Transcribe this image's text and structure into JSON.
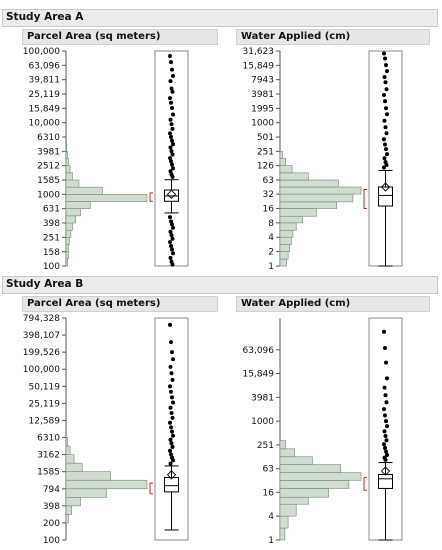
{
  "sections": [
    {
      "title": "Study Area A"
    },
    {
      "title": "Study Area B"
    }
  ],
  "colors": {
    "bar_fill": "#cfdccf",
    "bar_stroke": "#6f8a6f",
    "bracket": "#cc2222",
    "point": "#000000",
    "frame": "#888888"
  },
  "chart_data": [
    {
      "type": "histogram_boxplot",
      "panel": "A-parcel",
      "title": "Parcel Area (sq meters)",
      "scale": "log",
      "ylim": [
        100,
        100000
      ],
      "tick_labels": [
        "100,000",
        "63,096",
        "39,811",
        "25,119",
        "15,849",
        "10,000",
        "6310",
        "3981",
        "2512",
        "1585",
        "1000",
        "631",
        "398",
        "251",
        "158",
        "100"
      ],
      "histogram": [
        {
          "bin": [
            100,
            126
          ],
          "count": 0.02
        },
        {
          "bin": [
            126,
            158
          ],
          "count": 0.03
        },
        {
          "bin": [
            158,
            200
          ],
          "count": 0.03
        },
        {
          "bin": [
            200,
            251
          ],
          "count": 0.04
        },
        {
          "bin": [
            251,
            316
          ],
          "count": 0.06
        },
        {
          "bin": [
            316,
            398
          ],
          "count": 0.08
        },
        {
          "bin": [
            398,
            501
          ],
          "count": 0.12
        },
        {
          "bin": [
            501,
            631
          ],
          "count": 0.18
        },
        {
          "bin": [
            631,
            794
          ],
          "count": 0.3
        },
        {
          "bin": [
            794,
            1000
          ],
          "count": 1.0
        },
        {
          "bin": [
            1000,
            1259
          ],
          "count": 0.45
        },
        {
          "bin": [
            1259,
            1585
          ],
          "count": 0.16
        },
        {
          "bin": [
            1585,
            1995
          ],
          "count": 0.08
        },
        {
          "bin": [
            1995,
            2512
          ],
          "count": 0.05
        },
        {
          "bin": [
            2512,
            3162
          ],
          "count": 0.03
        },
        {
          "bin": [
            3162,
            3981
          ],
          "count": 0.02
        },
        {
          "bin": [
            3981,
            5012
          ],
          "count": 0.01
        }
      ],
      "box": {
        "q1": 800,
        "median": 950,
        "q3": 1150,
        "whisker_low": 550,
        "whisker_high": 1600,
        "mean": 1000,
        "shortest_half": [
          800,
          1050
        ]
      },
      "outliers": [
        85000,
        70000,
        55000,
        45000,
        38000,
        30000,
        27000,
        22000,
        19000,
        16000,
        13000,
        11000,
        9500,
        8200,
        7100,
        6300,
        5600,
        5000,
        4500,
        4000,
        3600,
        3200,
        2900,
        2600,
        2300,
        2100,
        1900,
        1750,
        480,
        420,
        380,
        340,
        300,
        270,
        240,
        215,
        190,
        170,
        150,
        130,
        115,
        105
      ]
    },
    {
      "type": "histogram_boxplot",
      "panel": "A-water",
      "title": "Water Applied (cm)",
      "scale": "log",
      "ylim": [
        1,
        31623
      ],
      "tick_labels": [
        "31,623",
        "15,849",
        "7943",
        "3981",
        "1995",
        "1000",
        "501",
        "251",
        "126",
        "63",
        "32",
        "16",
        "8",
        "4",
        "2",
        "1"
      ],
      "histogram": [
        {
          "bin": [
            1,
            1.4
          ],
          "count": 0.08
        },
        {
          "bin": [
            1.4,
            2
          ],
          "count": 0.1
        },
        {
          "bin": [
            2,
            2.8
          ],
          "count": 0.12
        },
        {
          "bin": [
            2.8,
            4
          ],
          "count": 0.14
        },
        {
          "bin": [
            4,
            5.6
          ],
          "count": 0.16
        },
        {
          "bin": [
            5.6,
            8
          ],
          "count": 0.2
        },
        {
          "bin": [
            8,
            11
          ],
          "count": 0.28
        },
        {
          "bin": [
            11,
            16
          ],
          "count": 0.45
        },
        {
          "bin": [
            16,
            22
          ],
          "count": 0.7
        },
        {
          "bin": [
            22,
            32
          ],
          "count": 0.9
        },
        {
          "bin": [
            32,
            45
          ],
          "count": 1.0
        },
        {
          "bin": [
            45,
            63
          ],
          "count": 0.72
        },
        {
          "bin": [
            63,
            89
          ],
          "count": 0.35
        },
        {
          "bin": [
            89,
            126
          ],
          "count": 0.15
        },
        {
          "bin": [
            126,
            178
          ],
          "count": 0.07
        },
        {
          "bin": [
            178,
            251
          ],
          "count": 0.03
        }
      ],
      "box": {
        "q1": 18,
        "median": 30,
        "q3": 45,
        "whisker_low": 1,
        "whisker_high": 100,
        "mean": 45,
        "shortest_half": [
          16,
          40
        ]
      },
      "outliers": [
        28000,
        22000,
        16000,
        12000,
        9000,
        7000,
        5000,
        3800,
        2800,
        2000,
        1500,
        1100,
        800,
        600,
        450,
        350,
        280,
        220,
        180,
        150,
        130,
        115
      ]
    },
    {
      "type": "histogram_boxplot",
      "panel": "B-parcel",
      "title": "Parcel Area (sq meters)",
      "scale": "log",
      "ylim": [
        100,
        794328
      ],
      "tick_labels": [
        "794,328",
        "398,107",
        "199,526",
        "100,000",
        "50,119",
        "25,119",
        "12,589",
        "6310",
        "3162",
        "1585",
        "794",
        "398",
        "200",
        "100"
      ],
      "histogram": [
        {
          "bin": [
            200,
            282
          ],
          "count": 0.03
        },
        {
          "bin": [
            282,
            398
          ],
          "count": 0.07
        },
        {
          "bin": [
            398,
            562
          ],
          "count": 0.18
        },
        {
          "bin": [
            562,
            794
          ],
          "count": 0.5
        },
        {
          "bin": [
            794,
            1122
          ],
          "count": 1.0
        },
        {
          "bin": [
            1122,
            1585
          ],
          "count": 0.55
        },
        {
          "bin": [
            1585,
            2239
          ],
          "count": 0.2
        },
        {
          "bin": [
            2239,
            3162
          ],
          "count": 0.1
        },
        {
          "bin": [
            3162,
            4467
          ],
          "count": 0.05
        },
        {
          "bin": [
            4467,
            6310
          ],
          "count": 0.02
        }
      ],
      "box": {
        "q1": 700,
        "median": 900,
        "q3": 1250,
        "whisker_low": 150,
        "whisker_high": 2000,
        "mean": 1400,
        "shortest_half": [
          650,
          1000
        ]
      },
      "outliers": [
        600000,
        300000,
        200000,
        150000,
        110000,
        85000,
        65000,
        50000,
        40000,
        32000,
        26000,
        21000,
        17000,
        14000,
        11500,
        9500,
        8000,
        6800,
        5800,
        5000,
        4300,
        3700,
        3200,
        2800,
        2500,
        2200
      ]
    },
    {
      "type": "histogram_boxplot",
      "panel": "B-water",
      "title": "Water Applied (cm)",
      "scale": "log",
      "ylim": [
        1,
        400000
      ],
      "tick_labels": [
        "63,096",
        "15,849",
        "3981",
        "1000",
        "251",
        "63",
        "16",
        "4",
        "1"
      ],
      "histogram": [
        {
          "bin": [
            1,
            2
          ],
          "count": 0.06
        },
        {
          "bin": [
            2,
            4
          ],
          "count": 0.1
        },
        {
          "bin": [
            4,
            8
          ],
          "count": 0.2
        },
        {
          "bin": [
            8,
            12
          ],
          "count": 0.35
        },
        {
          "bin": [
            12,
            20
          ],
          "count": 0.6
        },
        {
          "bin": [
            20,
            32
          ],
          "count": 0.85
        },
        {
          "bin": [
            32,
            50
          ],
          "count": 1.0
        },
        {
          "bin": [
            50,
            80
          ],
          "count": 0.75
        },
        {
          "bin": [
            80,
            126
          ],
          "count": 0.4
        },
        {
          "bin": [
            126,
            200
          ],
          "count": 0.18
        },
        {
          "bin": [
            200,
            320
          ],
          "count": 0.07
        }
      ],
      "box": {
        "q1": 20,
        "median": 35,
        "q3": 45,
        "whisker_low": 1,
        "whisker_high": 90,
        "mean": 55,
        "shortest_half": [
          18,
          38
        ]
      },
      "outliers": [
        180000,
        70000,
        30000,
        12000,
        7000,
        4500,
        3000,
        2000,
        1400,
        1000,
        750,
        550,
        420,
        330,
        260,
        210,
        170,
        140,
        120,
        105
      ]
    }
  ]
}
